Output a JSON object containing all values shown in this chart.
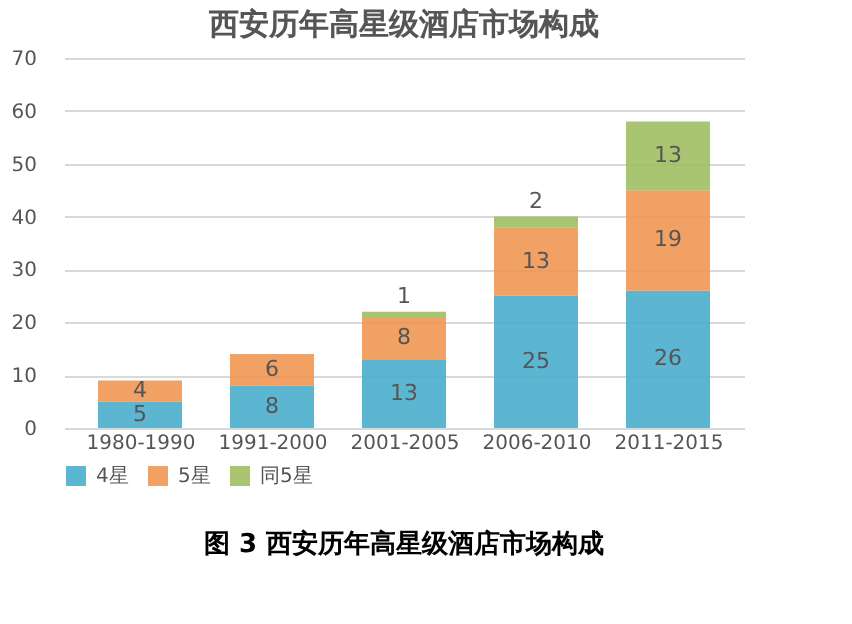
{
  "chart_data": {
    "type": "bar",
    "title": "西安历年高星级酒店市场构成",
    "stacked": true,
    "categories": [
      "1980-1990",
      "1991-2000",
      "2001-2005",
      "2006-2010",
      "2011-2015"
    ],
    "series": [
      {
        "name": "4星",
        "color": "#3fa9c9",
        "values": [
          5,
          8,
          13,
          25,
          26
        ]
      },
      {
        "name": "5星",
        "color": "#f0914a",
        "values": [
          4,
          6,
          8,
          13,
          19
        ]
      },
      {
        "name": "同5星",
        "color": "#9bbb59",
        "values": [
          null,
          null,
          1,
          2,
          13
        ]
      }
    ],
    "ylim": [
      0,
      70
    ],
    "yticks": [
      0,
      10,
      20,
      30,
      40,
      50,
      60,
      70
    ],
    "grid": "y",
    "legend": "bottom",
    "data_labels": true,
    "annotations": [
      "图 3 西安历年高星级酒店市场构成"
    ]
  }
}
